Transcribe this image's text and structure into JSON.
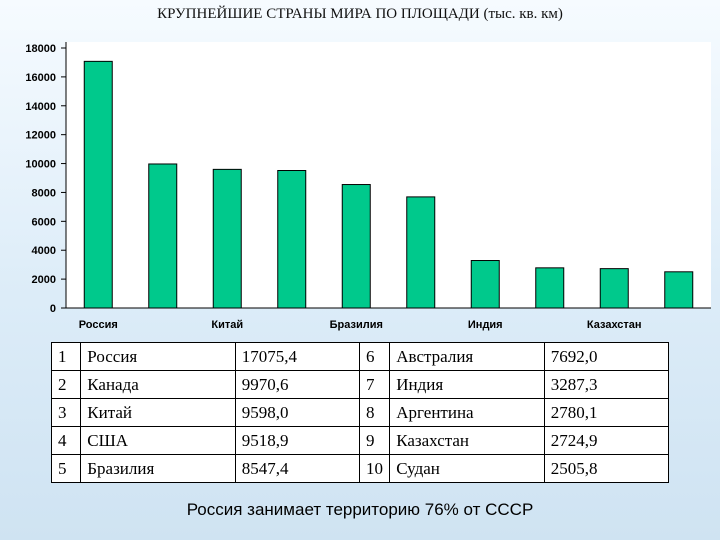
{
  "chart_data": {
    "type": "bar",
    "title": "КРУПНЕЙШИЕ СТРАНЫ МИРА ПО ПЛОЩАДИ (тыс. кв. км)",
    "categories": [
      "Россия",
      "Канада",
      "Китай",
      "США",
      "Бразилия",
      "Австралия",
      "Индия",
      "Аргентина",
      "Казахстан",
      "Судан"
    ],
    "category_labels_shown": [
      "Россия",
      "",
      "Китай",
      "",
      "Бразилия",
      "",
      "Индия",
      "",
      "Казахстан",
      ""
    ],
    "values": [
      17075.4,
      9970.6,
      9598.0,
      9518.9,
      8547.4,
      7692.0,
      3287.3,
      2780.1,
      2724.9,
      2505.8
    ],
    "ylim": [
      0,
      18000
    ],
    "yticks": [
      0,
      2000,
      4000,
      6000,
      8000,
      10000,
      12000,
      14000,
      16000,
      18000
    ],
    "grid": false,
    "colors": {
      "bar": "#00c98c",
      "bar_stroke": "#000000",
      "plot_bg": "#ffffff"
    }
  },
  "table": {
    "rows": [
      [
        {
          "n": "1",
          "name": "Россия",
          "area": "17075,4"
        },
        {
          "n": "6",
          "name": "Австралия",
          "area": "7692,0"
        }
      ],
      [
        {
          "n": "2",
          "name": "Канада",
          "area": "9970,6"
        },
        {
          "n": "7",
          "name": "Индия",
          "area": "3287,3"
        }
      ],
      [
        {
          "n": "3",
          "name": "Китай",
          "area": "9598,0"
        },
        {
          "n": "8",
          "name": "Аргентина",
          "area": "2780,1"
        }
      ],
      [
        {
          "n": "4",
          "name": "США",
          "area": "9518,9"
        },
        {
          "n": "9",
          "name": "Казахстан",
          "area": "2724,9"
        }
      ],
      [
        {
          "n": "5",
          "name": "Бразилия",
          "area": "8547,4"
        },
        {
          "n": "10",
          "name": "Судан",
          "area": "2505,8"
        }
      ]
    ]
  },
  "footer": "Россия занимает территорию 76% от СССР"
}
